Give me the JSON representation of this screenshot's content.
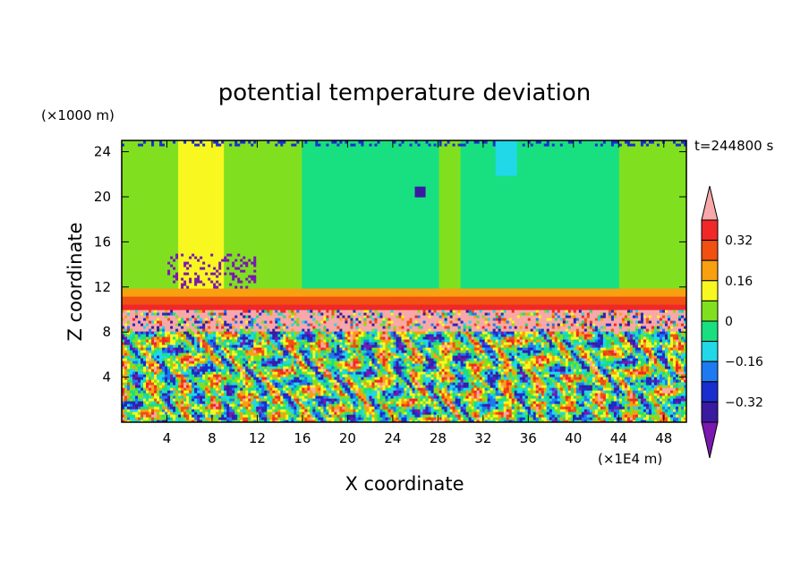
{
  "chart_data": {
    "type": "heatmap",
    "title": "potential temperature deviation",
    "xlabel": "X coordinate",
    "ylabel": "Z coordinate",
    "x_unit": "(×1E4 m)",
    "y_unit": "(×1000 m)",
    "time_label": "t=244800 s",
    "xlim": [
      0,
      50
    ],
    "ylim": [
      0,
      25
    ],
    "x_ticks": [
      4,
      8,
      12,
      16,
      20,
      24,
      28,
      32,
      36,
      40,
      44,
      48
    ],
    "y_ticks": [
      4,
      8,
      12,
      16,
      20,
      24
    ],
    "colorbar": {
      "levels": [
        -0.4,
        -0.32,
        -0.24,
        -0.16,
        -0.08,
        0,
        0.08,
        0.16,
        0.24,
        0.32,
        0.4
      ],
      "tick_labels": [
        "0.32",
        "0.16",
        "0",
        "−0.16",
        "−0.32"
      ],
      "tick_values": [
        0.32,
        0.16,
        0,
        -0.16,
        -0.32
      ],
      "colors": [
        "#7a18b0",
        "#3a1aa0",
        "#1a2ecf",
        "#1e7af0",
        "#20d8e8",
        "#18e080",
        "#80e020",
        "#f8f820",
        "#f8a010",
        "#f05010",
        "#f02828",
        "#f8a8a8"
      ]
    },
    "layers": [
      {
        "z": [
          0,
          2
        ],
        "value": 0.0,
        "note": "mixed turbulent"
      },
      {
        "z": [
          2,
          8
        ],
        "value": 0.0,
        "note": "mixed turbulent"
      },
      {
        "z": [
          8,
          10
        ],
        "value": 0.4
      },
      {
        "z": [
          10,
          10.5
        ],
        "value": 0.36
      },
      {
        "z": [
          10.5,
          11.2
        ],
        "value": 0.26
      },
      {
        "z": [
          11.2,
          11.8
        ],
        "value": 0.18
      },
      {
        "z": [
          11.8,
          25
        ],
        "value": 0.04
      }
    ]
  }
}
